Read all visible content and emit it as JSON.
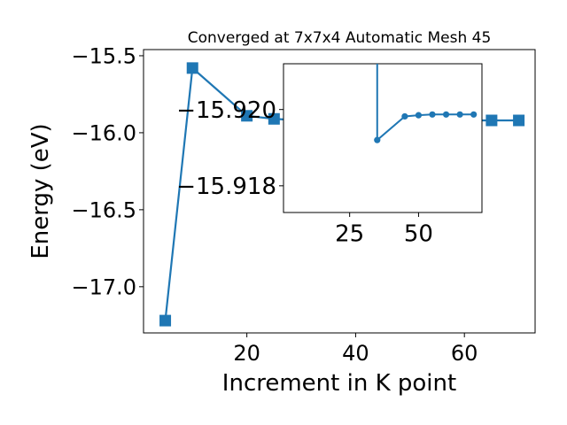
{
  "chart_data": [
    {
      "id": "main",
      "type": "line",
      "title": "Converged at 7x7x4 Automatic Mesh 45",
      "xlabel": "Increment in K point",
      "ylabel": "Energy (eV)",
      "xlim": [
        1,
        73
      ],
      "ylim": [
        -17.3,
        -15.46
      ],
      "xticks": [
        20,
        40,
        60
      ],
      "yticks": [
        -17.0,
        -16.5,
        -16.0,
        -15.5
      ],
      "xtick_labels": [
        "20",
        "40",
        "60"
      ],
      "ytick_labels": [
        "−17.0",
        "−16.5",
        "−16.0",
        "−15.5"
      ],
      "marker": "square",
      "color": "#1f77b4",
      "grid": false,
      "series": [
        {
          "x": [
            5,
            10,
            20,
            25,
            30,
            35,
            40,
            45,
            50,
            55,
            60,
            65,
            70
          ],
          "y": [
            -17.22,
            -15.58,
            -15.89,
            -15.91,
            -15.92,
            -15.92,
            -15.92,
            -15.92,
            -15.92,
            -15.92,
            -15.92,
            -15.92,
            -15.92
          ]
        }
      ]
    },
    {
      "id": "inset",
      "type": "line",
      "title": "",
      "xlabel": "",
      "ylabel": "",
      "xlim": [
        1,
        73
      ],
      "ylim": [
        -15.9173,
        -15.9212
      ],
      "xticks": [
        25,
        50
      ],
      "yticks": [
        -15.92,
        -15.918
      ],
      "xtick_labels": [
        "25",
        "50"
      ],
      "ytick_labels": [
        "−15.920",
        "−15.918"
      ],
      "marker": "circle",
      "color": "#1f77b4",
      "grid": false,
      "series": [
        {
          "x": [
            35,
            45,
            50,
            55,
            60,
            65,
            70
          ],
          "y": [
            -15.9192,
            -15.91982,
            -15.91985,
            -15.91987,
            -15.91987,
            -15.91987,
            -15.91987
          ],
          "lead_in_y": -15.93
        }
      ]
    }
  ]
}
